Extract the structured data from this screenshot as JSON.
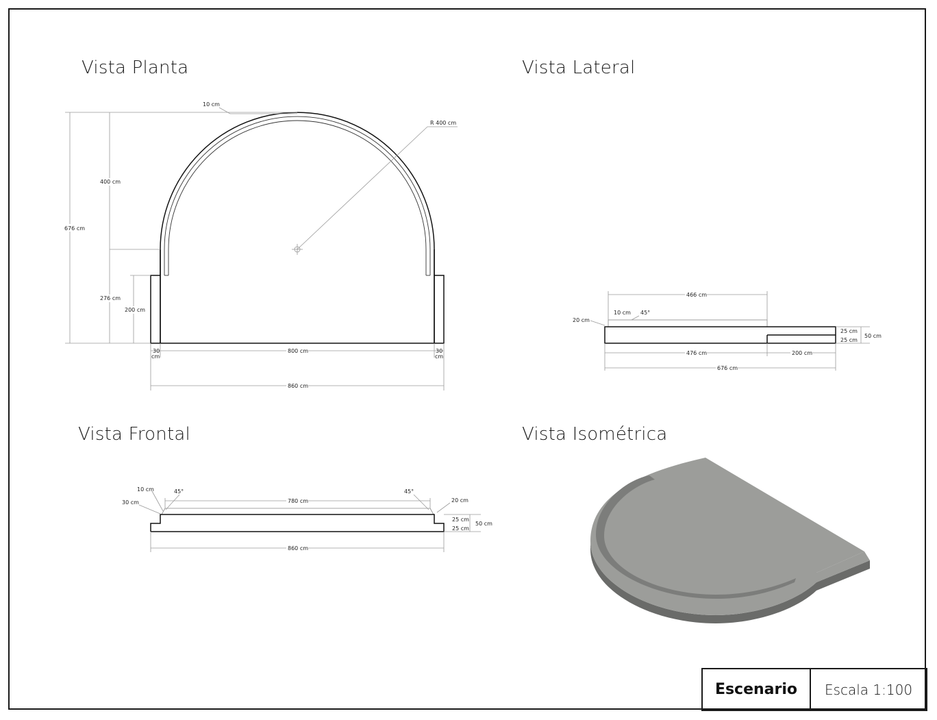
{
  "views": {
    "plan": {
      "title": "Vista Planta",
      "dims": {
        "rim": "10 cm",
        "radius": "R 400 cm",
        "arc_height": "400 cm",
        "total_depth": "676 cm",
        "rect_depth": "276 cm",
        "wing_depth": "200 cm",
        "wing_left_a": "30",
        "wing_left_b": "cm",
        "inner_width": "800 cm",
        "wing_right_a": "30",
        "wing_right_b": "cm",
        "total_width": "860 cm"
      }
    },
    "side": {
      "title": "Vista Lateral",
      "dims": {
        "top_length": "466 cm",
        "rim": "10 cm",
        "angle": "45°",
        "step_height": "20 cm",
        "upper": "25 cm",
        "lower": "25 cm",
        "total_height": "50 cm",
        "main_length": "476 cm",
        "wing_length": "200 cm",
        "total_length": "676 cm"
      }
    },
    "front": {
      "title": "Vista Frontal",
      "dims": {
        "rim": "10 cm",
        "angle_left": "45°",
        "angle_right": "45°",
        "side_offset": "30 cm",
        "top_width": "780 cm",
        "step_height": "20 cm",
        "upper": "25 cm",
        "lower": "25 cm",
        "total_height": "50 cm",
        "total_width": "860 cm"
      }
    },
    "iso": {
      "title": "Vista Isométrica",
      "fill_color": "#9c9d9a",
      "shade_color": "#7c7d7b",
      "dark_color": "#6a6b69"
    }
  },
  "titleblock": {
    "name": "Escenario",
    "scale": "Escala 1:100"
  }
}
